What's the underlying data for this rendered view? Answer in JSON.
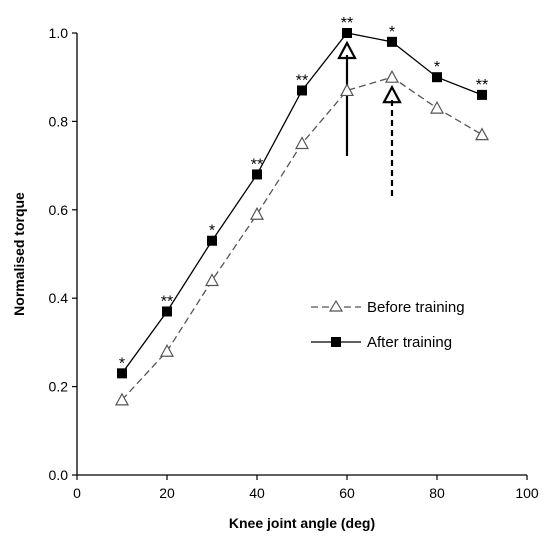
{
  "chart_data": {
    "type": "line",
    "xlabel": "Knee joint angle (deg)",
    "ylabel": "Normalised torque",
    "xlim": [
      0,
      100
    ],
    "ylim": [
      0,
      1.0
    ],
    "x_ticks": [
      "0",
      "20",
      "40",
      "60",
      "80",
      "100"
    ],
    "y_ticks": [
      "0.0",
      "0.2",
      "0.4",
      "0.6",
      "0.8",
      "1.0"
    ],
    "grid": false,
    "legend_position": "center-right",
    "x": [
      10,
      20,
      30,
      40,
      50,
      60,
      70,
      80,
      90
    ],
    "series": [
      {
        "name": "Before training",
        "values": [
          0.17,
          0.28,
          0.44,
          0.59,
          0.75,
          0.87,
          0.9,
          0.83,
          0.77
        ],
        "marker": "open-triangle",
        "line_style": "dashed",
        "color": "#555555"
      },
      {
        "name": "After training",
        "values": [
          0.23,
          0.37,
          0.53,
          0.68,
          0.87,
          1.0,
          0.98,
          0.9,
          0.86
        ],
        "marker": "filled-square",
        "line_style": "solid",
        "color": "#000000"
      }
    ],
    "significance": [
      "*",
      "**",
      "*",
      "**",
      "**",
      "**",
      "*",
      "*",
      "**"
    ],
    "optimum_arrows": [
      {
        "series": "After training",
        "x": 60,
        "line_style": "solid"
      },
      {
        "series": "Before training",
        "x": 70,
        "line_style": "dashed"
      }
    ]
  }
}
